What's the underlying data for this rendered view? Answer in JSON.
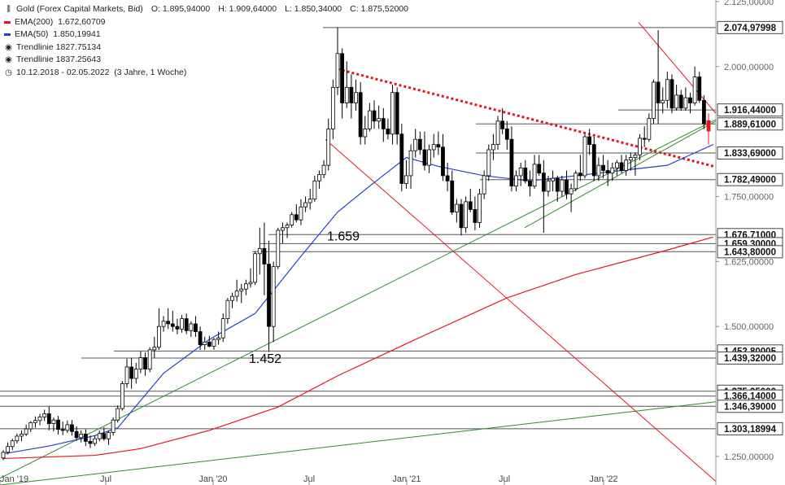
{
  "legend": {
    "title": "Gold (Forex Capital Markets, Bid)",
    "ohlc": {
      "open_label": "O:",
      "open": "1.895,94000",
      "high_label": "H:",
      "high": "1.909,64000",
      "low_label": "L:",
      "low": "1.850,34000",
      "close_label": "C:",
      "close": "1.875,52000"
    },
    "ema200": {
      "label": "EMA(200)",
      "value": "1.672,60709",
      "color": "#e8141c"
    },
    "ema50": {
      "label": "EMA(50)",
      "value": "1.850,19941",
      "color": "#1f3fd6"
    },
    "trend1": {
      "label": "Trendlinie",
      "value": "1827.75134"
    },
    "trend2": {
      "label": "Trendlinie",
      "value": "1837.25643"
    },
    "range": {
      "dates": "10.12.2018 - 02.05.2022",
      "period": "(3 Jahre, 1 Woche)"
    }
  },
  "chart_data": {
    "type": "candlestick",
    "instrument": "Gold",
    "timeframe": "weekly",
    "ylim": [
      1195,
      2128
    ],
    "y_ticks": [
      "1.250,00000",
      "1.500,00000",
      "1.750,00000",
      "2.000,00000",
      "2.125,00000",
      "1.625,00000"
    ],
    "x_ticks": [
      "Jan '19",
      "Jul",
      "Jan '20",
      "Jul",
      "Jan '21",
      "Jul",
      "Jan '22"
    ],
    "x_range": [
      "2018-12-10",
      "2022-05-02"
    ],
    "annotations": [
      "1.659",
      "1.452"
    ],
    "price_labels": [
      {
        "text": "2.074,97998",
        "value": 2075.0
      },
      {
        "text": "1.916,44000",
        "value": 1916.4
      },
      {
        "text": "1.889,61000",
        "value": 1889.6
      },
      {
        "text": "1.833,69000",
        "value": 1833.7
      },
      {
        "text": "1.782,49000",
        "value": 1782.5
      },
      {
        "text": "1.676,71000",
        "value": 1676.7
      },
      {
        "text": "1.659,30000",
        "value": 1659.3
      },
      {
        "text": "1.643,80000",
        "value": 1643.8
      },
      {
        "text": "1.452,80005",
        "value": 1452.8
      },
      {
        "text": "1.439,32000",
        "value": 1439.3
      },
      {
        "text": "1.375,35000",
        "value": 1375.4
      },
      {
        "text": "1.366,14000",
        "value": 1366.1
      },
      {
        "text": "1.346,39000",
        "value": 1346.4
      },
      {
        "text": "1.303,18994",
        "value": 1303.2
      }
    ],
    "candles": [
      [
        1247,
        1262,
        1243,
        1258
      ],
      [
        1258,
        1277,
        1254,
        1269
      ],
      [
        1269,
        1284,
        1262,
        1280
      ],
      [
        1280,
        1294,
        1275,
        1289
      ],
      [
        1289,
        1300,
        1279,
        1293
      ],
      [
        1293,
        1311,
        1289,
        1303
      ],
      [
        1303,
        1318,
        1297,
        1315
      ],
      [
        1315,
        1327,
        1305,
        1319
      ],
      [
        1319,
        1332,
        1310,
        1326
      ],
      [
        1326,
        1340,
        1318,
        1332
      ],
      [
        1332,
        1346,
        1300,
        1313
      ],
      [
        1313,
        1325,
        1298,
        1320
      ],
      [
        1320,
        1328,
        1292,
        1302
      ],
      [
        1302,
        1317,
        1291,
        1300
      ],
      [
        1300,
        1319,
        1295,
        1311
      ],
      [
        1311,
        1320,
        1290,
        1298
      ],
      [
        1298,
        1308,
        1280,
        1286
      ],
      [
        1286,
        1300,
        1277,
        1293
      ],
      [
        1293,
        1302,
        1270,
        1279
      ],
      [
        1279,
        1290,
        1266,
        1275
      ],
      [
        1275,
        1290,
        1270,
        1284
      ],
      [
        1284,
        1300,
        1279,
        1294
      ],
      [
        1294,
        1306,
        1280,
        1284
      ],
      [
        1284,
        1300,
        1272,
        1296
      ],
      [
        1296,
        1325,
        1290,
        1320
      ],
      [
        1320,
        1348,
        1315,
        1342
      ],
      [
        1342,
        1395,
        1338,
        1390
      ],
      [
        1390,
        1438,
        1382,
        1422
      ],
      [
        1422,
        1440,
        1380,
        1400
      ],
      [
        1400,
        1430,
        1390,
        1418
      ],
      [
        1418,
        1452,
        1410,
        1440
      ],
      [
        1440,
        1450,
        1405,
        1418
      ],
      [
        1418,
        1460,
        1412,
        1455
      ],
      [
        1455,
        1480,
        1440,
        1460
      ],
      [
        1460,
        1535,
        1455,
        1500
      ],
      [
        1500,
        1520,
        1490,
        1510
      ],
      [
        1510,
        1535,
        1495,
        1505
      ],
      [
        1505,
        1530,
        1490,
        1500
      ],
      [
        1500,
        1515,
        1485,
        1495
      ],
      [
        1495,
        1522,
        1488,
        1515
      ],
      [
        1515,
        1525,
        1485,
        1492
      ],
      [
        1492,
        1510,
        1480,
        1505
      ],
      [
        1505,
        1520,
        1480,
        1490
      ],
      [
        1490,
        1500,
        1455,
        1465
      ],
      [
        1465,
        1480,
        1455,
        1470
      ],
      [
        1470,
        1482,
        1460,
        1462
      ],
      [
        1462,
        1478,
        1455,
        1475
      ],
      [
        1475,
        1490,
        1465,
        1478
      ],
      [
        1478,
        1525,
        1470,
        1515
      ],
      [
        1515,
        1555,
        1505,
        1550
      ],
      [
        1550,
        1565,
        1535,
        1558
      ],
      [
        1558,
        1590,
        1548,
        1568
      ],
      [
        1568,
        1582,
        1545,
        1572
      ],
      [
        1572,
        1590,
        1560,
        1582
      ],
      [
        1582,
        1612,
        1575,
        1585
      ],
      [
        1585,
        1645,
        1580,
        1640
      ],
      [
        1640,
        1690,
        1600,
        1650
      ],
      [
        1650,
        1700,
        1560,
        1620
      ],
      [
        1620,
        1665,
        1451,
        1500
      ],
      [
        1500,
        1625,
        1470,
        1615
      ],
      [
        1615,
        1690,
        1610,
        1685
      ],
      [
        1685,
        1700,
        1660,
        1690
      ],
      [
        1690,
        1700,
        1670,
        1695
      ],
      [
        1695,
        1720,
        1690,
        1715
      ],
      [
        1715,
        1735,
        1700,
        1705
      ],
      [
        1705,
        1745,
        1695,
        1730
      ],
      [
        1730,
        1750,
        1720,
        1738
      ],
      [
        1738,
        1765,
        1725,
        1745
      ],
      [
        1745,
        1790,
        1740,
        1780
      ],
      [
        1780,
        1800,
        1765,
        1792
      ],
      [
        1792,
        1820,
        1785,
        1810
      ],
      [
        1810,
        1900,
        1800,
        1880
      ],
      [
        1880,
        1975,
        1860,
        1960
      ],
      [
        1960,
        2075,
        1945,
        2025
      ],
      [
        2025,
        2035,
        1900,
        1930
      ],
      [
        1930,
        2010,
        1920,
        1960
      ],
      [
        1960,
        1985,
        1900,
        1930
      ],
      [
        1930,
        1975,
        1915,
        1950
      ],
      [
        1950,
        1970,
        1850,
        1865
      ],
      [
        1865,
        1905,
        1850,
        1880
      ],
      [
        1880,
        1930,
        1875,
        1915
      ],
      [
        1915,
        1935,
        1880,
        1895
      ],
      [
        1895,
        1925,
        1880,
        1900
      ],
      [
        1900,
        1920,
        1855,
        1880
      ],
      [
        1880,
        1900,
        1860,
        1870
      ],
      [
        1870,
        1965,
        1850,
        1950
      ],
      [
        1950,
        1960,
        1850,
        1870
      ],
      [
        1870,
        1890,
        1760,
        1775
      ],
      [
        1775,
        1820,
        1765,
        1790
      ],
      [
        1790,
        1850,
        1765,
        1838
      ],
      [
        1838,
        1880,
        1825,
        1860
      ],
      [
        1860,
        1875,
        1830,
        1840
      ],
      [
        1840,
        1875,
        1800,
        1810
      ],
      [
        1810,
        1850,
        1795,
        1840
      ],
      [
        1840,
        1870,
        1825,
        1850
      ],
      [
        1850,
        1875,
        1830,
        1845
      ],
      [
        1845,
        1870,
        1780,
        1790
      ],
      [
        1790,
        1815,
        1760,
        1780
      ],
      [
        1780,
        1800,
        1715,
        1720
      ],
      [
        1720,
        1745,
        1700,
        1735
      ],
      [
        1735,
        1745,
        1675,
        1690
      ],
      [
        1690,
        1750,
        1680,
        1740
      ],
      [
        1740,
        1765,
        1720,
        1725
      ],
      [
        1725,
        1750,
        1685,
        1700
      ],
      [
        1700,
        1765,
        1690,
        1755
      ],
      [
        1755,
        1800,
        1745,
        1790
      ],
      [
        1790,
        1850,
        1780,
        1840
      ],
      [
        1840,
        1870,
        1820,
        1850
      ],
      [
        1850,
        1905,
        1840,
        1895
      ],
      [
        1895,
        1920,
        1870,
        1880
      ],
      [
        1880,
        1895,
        1840,
        1860
      ],
      [
        1860,
        1885,
        1760,
        1770
      ],
      [
        1770,
        1800,
        1760,
        1790
      ],
      [
        1790,
        1815,
        1770,
        1805
      ],
      [
        1805,
        1820,
        1775,
        1780
      ],
      [
        1780,
        1800,
        1750,
        1770
      ],
      [
        1770,
        1830,
        1765,
        1812
      ],
      [
        1812,
        1830,
        1790,
        1795
      ],
      [
        1795,
        1820,
        1680,
        1760
      ],
      [
        1760,
        1790,
        1750,
        1780
      ],
      [
        1780,
        1800,
        1760,
        1785
      ],
      [
        1785,
        1790,
        1740,
        1760
      ],
      [
        1760,
        1790,
        1750,
        1782
      ],
      [
        1782,
        1800,
        1745,
        1755
      ],
      [
        1755,
        1775,
        1720,
        1765
      ],
      [
        1765,
        1800,
        1760,
        1795
      ],
      [
        1795,
        1830,
        1780,
        1790
      ],
      [
        1790,
        1870,
        1785,
        1865
      ],
      [
        1865,
        1880,
        1830,
        1850
      ],
      [
        1850,
        1865,
        1780,
        1790
      ],
      [
        1790,
        1825,
        1780,
        1810
      ],
      [
        1810,
        1830,
        1785,
        1800
      ],
      [
        1800,
        1820,
        1770,
        1795
      ],
      [
        1795,
        1815,
        1780,
        1805
      ],
      [
        1805,
        1820,
        1790,
        1815
      ],
      [
        1815,
        1830,
        1795,
        1800
      ],
      [
        1800,
        1830,
        1790,
        1820
      ],
      [
        1820,
        1835,
        1800,
        1825
      ],
      [
        1825,
        1835,
        1790,
        1830
      ],
      [
        1830,
        1870,
        1820,
        1862
      ],
      [
        1862,
        1885,
        1845,
        1860
      ],
      [
        1860,
        1910,
        1855,
        1900
      ],
      [
        1900,
        1975,
        1890,
        1970
      ],
      [
        1970,
        2070,
        1890,
        1930
      ],
      [
        1930,
        1960,
        1910,
        1935
      ],
      [
        1935,
        1990,
        1920,
        1975
      ],
      [
        1975,
        1985,
        1910,
        1920
      ],
      [
        1920,
        1965,
        1915,
        1945
      ],
      [
        1945,
        1955,
        1915,
        1920
      ],
      [
        1920,
        1960,
        1915,
        1940
      ],
      [
        1940,
        1950,
        1910,
        1930
      ],
      [
        1930,
        2000,
        1925,
        1980
      ],
      [
        1980,
        1990,
        1930,
        1935
      ],
      [
        1935,
        1945,
        1880,
        1890
      ],
      [
        1896,
        1910,
        1850,
        1876
      ]
    ],
    "overlays": {
      "ema200_points": [
        [
          0,
          1246
        ],
        [
          20,
          1252
        ],
        [
          30,
          1265
        ],
        [
          45,
          1300
        ],
        [
          60,
          1345
        ],
        [
          73,
          1405
        ],
        [
          90,
          1475
        ],
        [
          110,
          1555
        ],
        [
          125,
          1600
        ],
        [
          145,
          1647
        ],
        [
          155,
          1672
        ]
      ],
      "ema50_points": [
        [
          0,
          1255
        ],
        [
          10,
          1270
        ],
        [
          20,
          1290
        ],
        [
          25,
          1305
        ],
        [
          35,
          1410
        ],
        [
          45,
          1475
        ],
        [
          55,
          1525
        ],
        [
          65,
          1635
        ],
        [
          73,
          1720
        ],
        [
          80,
          1770
        ],
        [
          88,
          1825
        ],
        [
          95,
          1808
        ],
        [
          105,
          1790
        ],
        [
          115,
          1780
        ],
        [
          125,
          1790
        ],
        [
          135,
          1800
        ],
        [
          145,
          1810
        ],
        [
          150,
          1830
        ],
        [
          155,
          1850
        ]
      ]
    }
  }
}
